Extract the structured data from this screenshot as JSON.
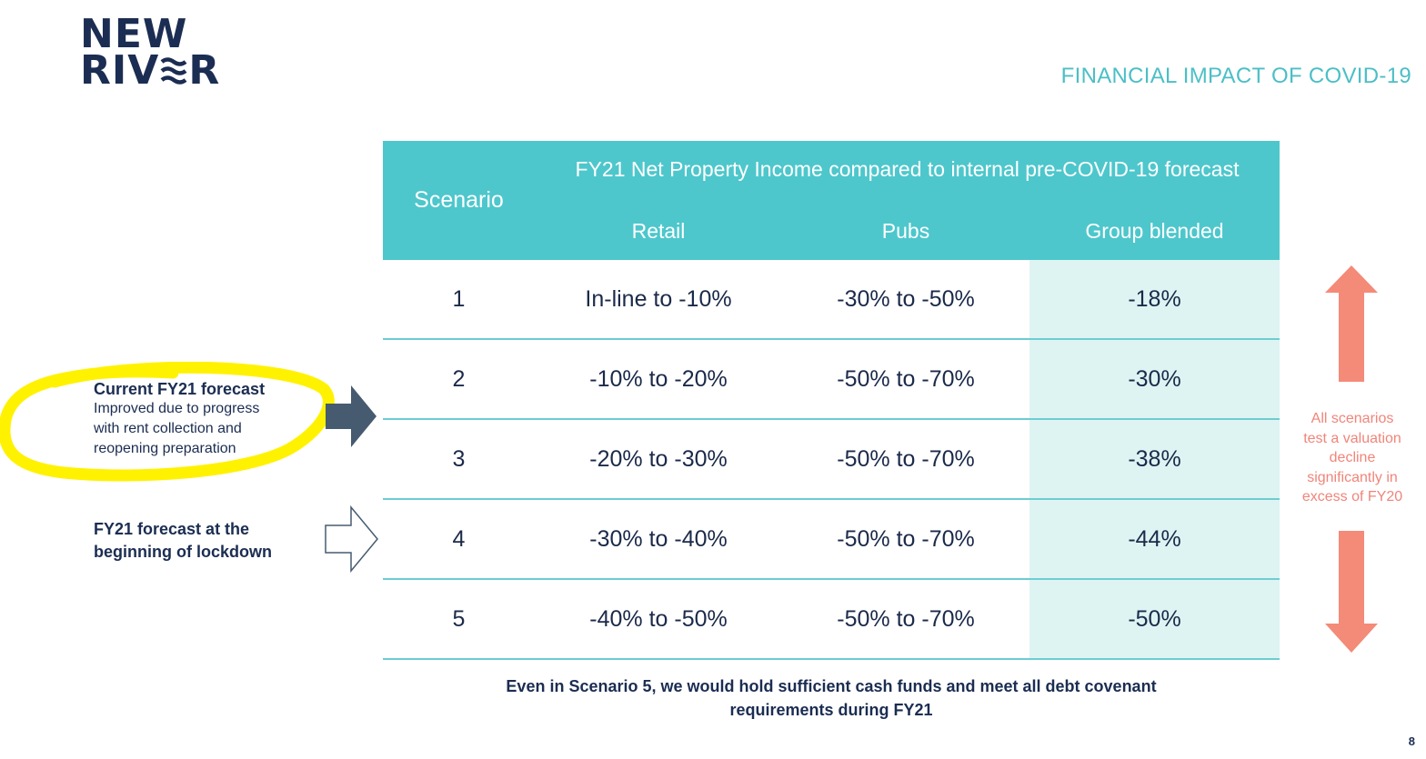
{
  "logo": {
    "line1": "NEW",
    "line2_start": "RIV",
    "line2_end": "R",
    "line2_waves_icon": "wave-e-icon"
  },
  "header": {
    "section_title": "FINANCIAL IMPACT OF COVID-19"
  },
  "table": {
    "scenario_header": "Scenario",
    "group_header": "FY21 Net Property Income compared to internal pre-COVID-19 forecast",
    "columns": [
      "Retail",
      "Pubs",
      "Group blended"
    ],
    "rows": [
      {
        "scenario": "1",
        "retail": "In-line to -10%",
        "pubs": "-30% to -50%",
        "blended": "-18%"
      },
      {
        "scenario": "2",
        "retail": "-10% to -20%",
        "pubs": "-50% to -70%",
        "blended": "-30%"
      },
      {
        "scenario": "3",
        "retail": "-20% to -30%",
        "pubs": "-50% to -70%",
        "blended": "-38%"
      },
      {
        "scenario": "4",
        "retail": "-30% to -40%",
        "pubs": "-50% to -70%",
        "blended": "-44%"
      },
      {
        "scenario": "5",
        "retail": "-40% to -50%",
        "pubs": "-50% to -70%",
        "blended": "-50%"
      }
    ]
  },
  "left": {
    "current_title": "Current FY21 forecast",
    "current_sub": [
      "Improved due to progress",
      "with rent collection and",
      "reopening preparation"
    ],
    "lockdown": [
      "FY21 forecast at the",
      "beginning of lockdown"
    ]
  },
  "side_note": [
    "All scenarios",
    "test a valuation",
    "decline",
    "significantly in",
    "excess of FY20"
  ],
  "footnote": [
    "Even in Scenario 5, we would hold sufficient cash funds and meet all debt covenant",
    "requirements during FY21"
  ],
  "page_number": "8",
  "colors": {
    "teal": "#4dc7cc",
    "teal_light": "#def4f3",
    "navy": "#1b2d52",
    "coral": "#f0857a",
    "highlight": "#fff200"
  }
}
